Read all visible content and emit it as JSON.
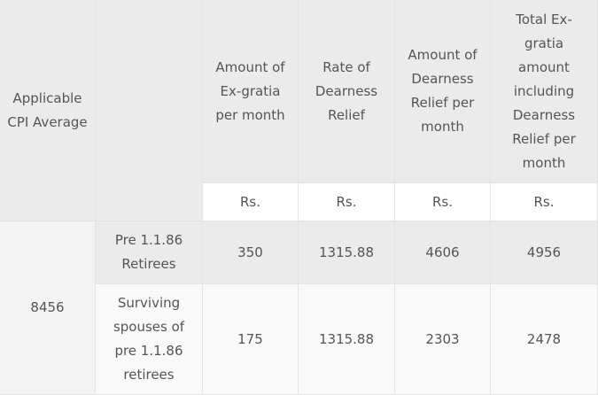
{
  "table": {
    "header": {
      "cpi": "Applicable CPI Average",
      "columns": [
        "Amount of Ex-gratia per month",
        "Rate of Dearness Relief",
        "Amount of Dearness Relief per month",
        "Total Ex-gratia amount including Dearness Relief per month"
      ],
      "units": [
        "Rs.",
        "Rs.",
        "Rs.",
        "Rs."
      ]
    },
    "cpi_value": 8456,
    "rows": [
      {
        "category": "Pre 1.1.86 Retirees",
        "values": [
          350,
          1315.88,
          4606,
          4956
        ]
      },
      {
        "category": "Surviving spouses of pre 1.1.86 retirees",
        "values": [
          175,
          1315.88,
          2303,
          2478
        ]
      }
    ]
  }
}
